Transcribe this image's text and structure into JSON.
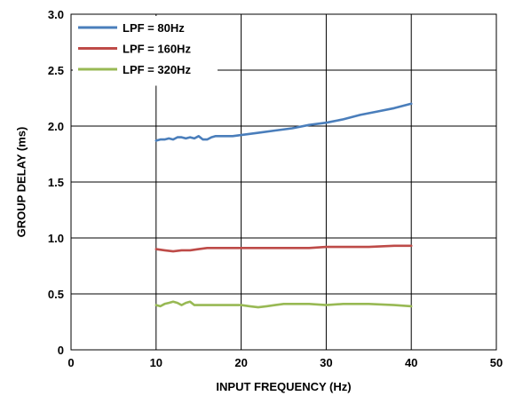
{
  "chart_data": {
    "type": "line",
    "title": "",
    "xlabel": "INPUT FREQUENCY (Hz)",
    "ylabel": "GROUP DELAY (ms)",
    "xlim": [
      0,
      50
    ],
    "ylim": [
      0,
      3.0
    ],
    "x_ticks": [
      0,
      10,
      20,
      30,
      40,
      50
    ],
    "y_ticks": [
      0,
      0.5,
      1.0,
      1.5,
      2.0,
      2.5,
      3.0
    ],
    "x_tick_labels": [
      "0",
      "10",
      "20",
      "30",
      "40",
      "50"
    ],
    "y_tick_labels": [
      "0",
      "0.5",
      "1.0",
      "1.5",
      "2.0",
      "2.5",
      "3.0"
    ],
    "grid": true,
    "legend_position": "top-left",
    "series": [
      {
        "name": "LPF = 80Hz",
        "color": "#4a7ebb",
        "x": [
          10,
          10.5,
          11,
          11.5,
          12,
          12.5,
          13,
          13.5,
          14,
          14.5,
          15,
          15.5,
          16,
          16.5,
          17,
          18,
          19,
          20,
          22,
          24,
          26,
          28,
          30,
          32,
          34,
          36,
          38,
          40
        ],
        "y": [
          1.87,
          1.88,
          1.88,
          1.89,
          1.88,
          1.9,
          1.9,
          1.89,
          1.9,
          1.89,
          1.91,
          1.88,
          1.88,
          1.9,
          1.91,
          1.91,
          1.91,
          1.92,
          1.94,
          1.96,
          1.98,
          2.01,
          2.03,
          2.06,
          2.1,
          2.13,
          2.16,
          2.2
        ]
      },
      {
        "name": "LPF = 160Hz",
        "color": "#be4b48",
        "x": [
          10,
          11,
          12,
          13,
          14,
          15,
          16,
          17,
          18,
          19,
          20,
          22,
          25,
          28,
          30,
          32,
          35,
          38,
          40
        ],
        "y": [
          0.9,
          0.89,
          0.88,
          0.89,
          0.89,
          0.9,
          0.91,
          0.91,
          0.91,
          0.91,
          0.91,
          0.91,
          0.91,
          0.91,
          0.92,
          0.92,
          0.92,
          0.93,
          0.93
        ]
      },
      {
        "name": "LPF = 320Hz",
        "color": "#98b954",
        "x": [
          10,
          10.5,
          11,
          11.5,
          12,
          12.5,
          13,
          13.5,
          14,
          14.5,
          15,
          16,
          17,
          18,
          19,
          20,
          21,
          22,
          23,
          24,
          25,
          26,
          28,
          30,
          32,
          35,
          38,
          40
        ],
        "y": [
          0.4,
          0.39,
          0.41,
          0.42,
          0.43,
          0.42,
          0.4,
          0.42,
          0.43,
          0.4,
          0.4,
          0.4,
          0.4,
          0.4,
          0.4,
          0.4,
          0.39,
          0.38,
          0.39,
          0.4,
          0.41,
          0.41,
          0.41,
          0.4,
          0.41,
          0.41,
          0.4,
          0.39
        ]
      }
    ]
  }
}
